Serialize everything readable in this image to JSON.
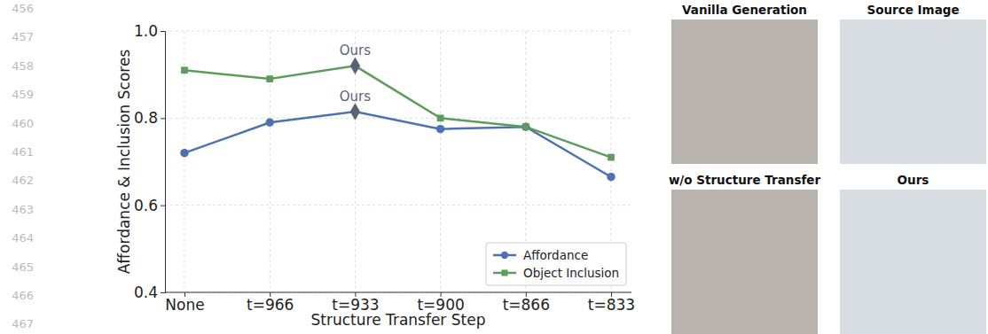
{
  "line_numbers": [
    456,
    457,
    458,
    459,
    460,
    461,
    462,
    463,
    464,
    465,
    466,
    467
  ],
  "chart_data": {
    "type": "line",
    "x_label": "Structure Transfer Step",
    "y_label": "Affordance & Inclusion Scores",
    "categories": [
      "None",
      "t=966",
      "t=933",
      "t=900",
      "t=866",
      "t=833"
    ],
    "series": [
      {
        "name": "Affordance",
        "color": "#4c72b0",
        "marker": "circle",
        "values": [
          0.72,
          0.79,
          0.815,
          0.775,
          0.78,
          0.665
        ]
      },
      {
        "name": "Object Inclusion",
        "color": "#5c9c5c",
        "marker": "square",
        "values": [
          0.91,
          0.89,
          0.92,
          0.8,
          0.78,
          0.71
        ]
      }
    ],
    "annotations": [
      {
        "text": "Ours",
        "series": "Object Inclusion",
        "x": "t=933"
      },
      {
        "text": "Ours",
        "series": "Affordance",
        "x": "t=933"
      }
    ],
    "ylim": [
      0.4,
      1.0
    ],
    "yticks": [
      0.4,
      0.6,
      0.8,
      {
        "value": 1.0,
        "label": "1.0"
      }
    ],
    "grid": true,
    "legend": "lower right"
  },
  "images": [
    {
      "caption": "Vanilla Generation"
    },
    {
      "caption": "Source Image"
    },
    {
      "caption": "w/o Structure Transfer"
    },
    {
      "caption": "Ours"
    }
  ]
}
